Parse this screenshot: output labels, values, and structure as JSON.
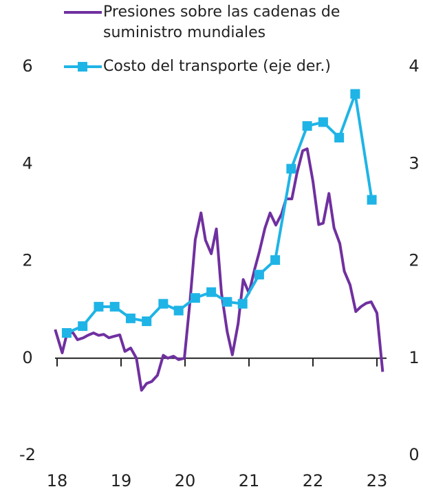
{
  "chart_data": {
    "type": "line",
    "xlim": [
      2018,
      2023
    ],
    "xticks": [
      {
        "value": 2018,
        "label": "18"
      },
      {
        "value": 2019,
        "label": "19"
      },
      {
        "value": 2020,
        "label": "20"
      },
      {
        "value": 2021,
        "label": "21"
      },
      {
        "value": 2022,
        "label": "22"
      },
      {
        "value": 2023,
        "label": "23"
      }
    ],
    "ylim": [
      -2,
      6
    ],
    "yticks": [
      -2,
      0,
      2,
      4,
      6
    ],
    "y2lim": [
      0,
      4
    ],
    "y2ticks": [
      0,
      1,
      2,
      3,
      4
    ],
    "series": [
      {
        "name": "Presiones sobre las cadenas de suministro mundiales",
        "color": "#7030a0",
        "x": [
          2017.97,
          2018.08,
          2018.16,
          2018.25,
          2018.32,
          2018.41,
          2018.48,
          2018.57,
          2018.65,
          2018.73,
          2018.81,
          2018.89,
          2018.98,
          2019.06,
          2019.15,
          2019.24,
          2019.32,
          2019.4,
          2019.48,
          2019.57,
          2019.66,
          2019.73,
          2019.82,
          2019.9,
          2019.99,
          2020.08,
          2020.16,
          2020.25,
          2020.32,
          2020.41,
          2020.49,
          2020.57,
          2020.66,
          2020.74,
          2020.83,
          2020.91,
          2021.0,
          2021.09,
          2021.16,
          2021.25,
          2021.33,
          2021.42,
          2021.51,
          2021.58,
          2021.67,
          2021.75,
          2021.84,
          2021.91,
          2022.0,
          2022.09,
          2022.16,
          2022.25,
          2022.33,
          2022.42,
          2022.49,
          2022.58,
          2022.67,
          2022.75,
          2022.83,
          2022.91,
          2023.0,
          2023.09
        ],
        "values": [
          0.59,
          0.11,
          0.54,
          0.52,
          0.38,
          0.42,
          0.47,
          0.52,
          0.47,
          0.49,
          0.42,
          0.45,
          0.48,
          0.14,
          0.21,
          0,
          -0.66,
          -0.52,
          -0.48,
          -0.35,
          0.06,
          0,
          0.04,
          -0.03,
          0,
          1.2,
          2.44,
          2.99,
          2.43,
          2.15,
          2.66,
          1.34,
          0.54,
          0.07,
          0.71,
          1.62,
          1.34,
          1.84,
          2.18,
          2.68,
          2.99,
          2.74,
          2.97,
          3.28,
          3.28,
          3.81,
          4.27,
          4.31,
          3.64,
          2.75,
          2.78,
          3.39,
          2.68,
          2.36,
          1.79,
          1.51,
          0.96,
          1.06,
          1.13,
          1.16,
          0.93,
          -0.28
        ]
      },
      {
        "name": "Costo del transporte (eje der.)",
        "color": "#1fb4e6",
        "axis": "y2",
        "marker": "square",
        "x": [
          2018.15,
          2018.4,
          2018.65,
          2018.9,
          2019.15,
          2019.4,
          2019.66,
          2019.9,
          2020.16,
          2020.41,
          2020.66,
          2020.9,
          2021.16,
          2021.41,
          2021.66,
          2021.91,
          2022.16,
          2022.41,
          2022.66,
          2022.92
        ],
        "values": [
          1.26,
          1.33,
          1.53,
          1.53,
          1.41,
          1.38,
          1.56,
          1.49,
          1.62,
          1.68,
          1.58,
          1.56,
          1.86,
          2.01,
          2.95,
          3.39,
          3.43,
          3.27,
          3.72,
          2.63
        ]
      }
    ]
  }
}
